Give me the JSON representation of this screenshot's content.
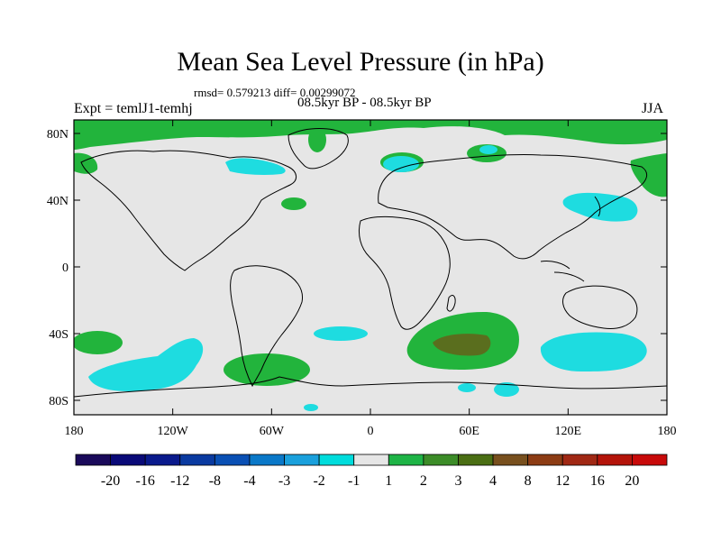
{
  "title": "Mean Sea Level Pressure (in hPa)",
  "stats": "rmsd= 0.579213 diff= 0.00299072",
  "period": "08.5kyr BP - 08.5kyr BP",
  "experiment": "Expt = temlJ1-temhj",
  "season": "JJA",
  "lat_labels": [
    "80N",
    "40N",
    "0",
    "40S",
    "80S"
  ],
  "lon_labels": [
    "180",
    "120W",
    "60W",
    "0",
    "60E",
    "120E",
    "180"
  ],
  "colorbar": {
    "labels": [
      "-20",
      "-16",
      "-12",
      "-8",
      "-4",
      "-3",
      "-2",
      "-1",
      "1",
      "2",
      "3",
      "4",
      "8",
      "12",
      "16",
      "20"
    ],
    "colors": [
      "#1a0a5a",
      "#0a0a78",
      "#0a1a8c",
      "#0a3aa0",
      "#0a50b4",
      "#0a78c8",
      "#1aa0dc",
      "#00dcdc",
      "#e6e6e6",
      "#1eb446",
      "#3c8c28",
      "#4a6e14",
      "#78501e",
      "#8c3c14",
      "#a02814",
      "#b4140a",
      "#c80a0a"
    ]
  },
  "map_colors": {
    "neutral": "#e6e6e6",
    "green": "#22b43c",
    "olive": "#5a6e1e",
    "cyan": "#1edce0",
    "coast": "#000000"
  }
}
